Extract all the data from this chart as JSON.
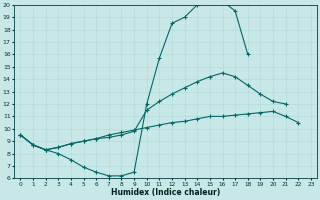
{
  "xlabel": "Humidex (Indice chaleur)",
  "background_color": "#c8e8e8",
  "grid_color": "#b0d8d8",
  "line_color": "#006868",
  "xlim": [
    -0.5,
    23.5
  ],
  "ylim": [
    6,
    20
  ],
  "xticks": [
    0,
    1,
    2,
    3,
    4,
    5,
    6,
    7,
    8,
    9,
    10,
    11,
    12,
    13,
    14,
    15,
    16,
    17,
    18,
    19,
    20,
    21,
    22,
    23
  ],
  "yticks": [
    6,
    7,
    8,
    9,
    10,
    11,
    12,
    13,
    14,
    15,
    16,
    17,
    18,
    19,
    20
  ],
  "curve1_x": [
    0,
    1,
    2,
    3,
    4,
    5,
    6,
    7,
    8,
    9,
    10,
    11,
    12,
    13,
    14,
    15,
    16,
    17,
    18
  ],
  "curve1_y": [
    9.5,
    8.7,
    8.3,
    8.0,
    7.5,
    6.9,
    6.5,
    6.2,
    6.2,
    6.5,
    12.0,
    15.7,
    18.5,
    19.0,
    20.0,
    20.2,
    20.3,
    19.5,
    16.0
  ],
  "curve2_x": [
    0,
    1,
    2,
    3,
    4,
    5,
    6,
    7,
    8,
    9,
    10,
    11,
    12,
    13,
    14,
    15,
    16,
    17,
    18,
    19,
    20,
    21
  ],
  "curve2_y": [
    9.5,
    8.7,
    8.3,
    8.5,
    8.8,
    9.0,
    9.2,
    9.3,
    9.5,
    9.8,
    11.5,
    12.2,
    12.8,
    13.3,
    13.8,
    14.2,
    14.5,
    14.2,
    13.5,
    12.8,
    12.2,
    12.0
  ],
  "curve3_x": [
    0,
    1,
    2,
    3,
    4,
    5,
    6,
    7,
    8,
    9,
    10,
    11,
    12,
    13,
    14,
    15,
    16,
    17,
    18,
    19,
    20,
    21,
    22
  ],
  "curve3_y": [
    9.5,
    8.7,
    8.3,
    8.5,
    8.8,
    9.0,
    9.2,
    9.5,
    9.7,
    9.9,
    10.1,
    10.3,
    10.5,
    10.6,
    10.8,
    11.0,
    11.0,
    11.1,
    11.2,
    11.3,
    11.4,
    11.0,
    10.5
  ]
}
